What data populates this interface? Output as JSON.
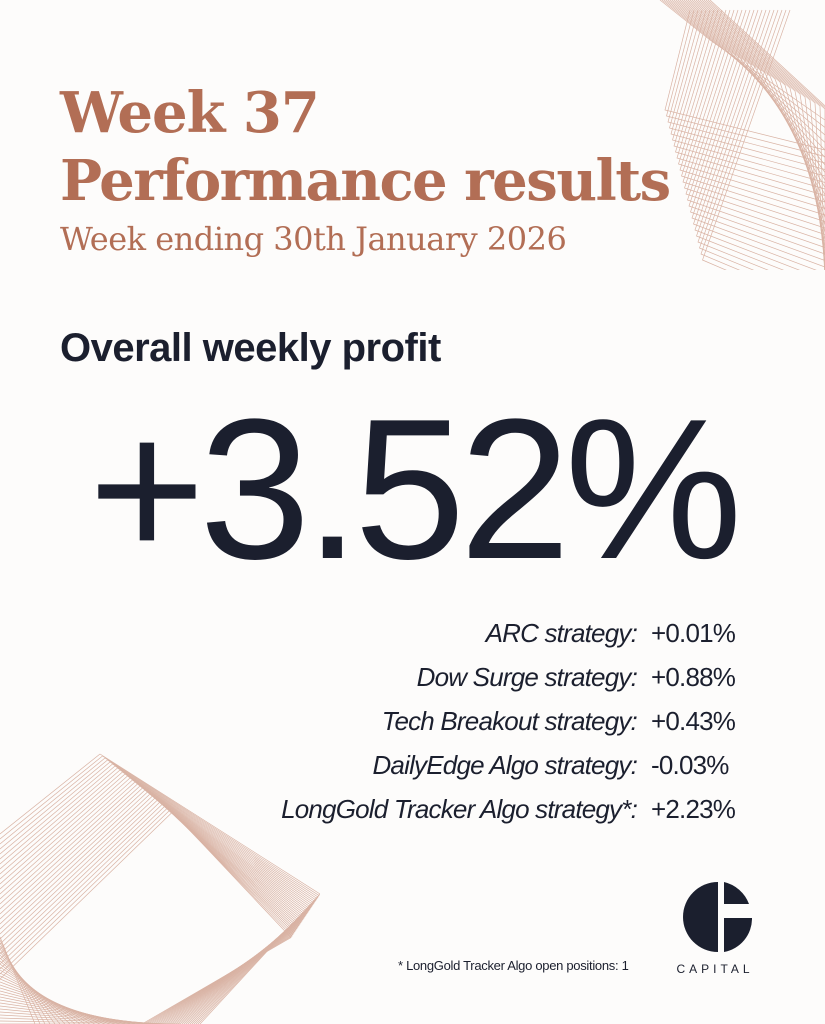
{
  "header": {
    "title_line1": "Week 37",
    "title_line2": "Performance results",
    "subtitle": "Week ending 30th January 2026"
  },
  "summary": {
    "label": "Overall weekly profit",
    "value": "+3.52%"
  },
  "strategies": [
    {
      "name": "ARC strategy:",
      "value": "+0.01%"
    },
    {
      "name": "Dow Surge strategy:",
      "value": "+0.88%"
    },
    {
      "name": "Tech Breakout strategy:",
      "value": "+0.43%"
    },
    {
      "name": "DailyEdge Algo strategy:",
      "value": "-0.03%"
    },
    {
      "name": "LongGold Tracker Algo strategy*:",
      "value": "+2.23%"
    }
  ],
  "footnote": "* LongGold Tracker Algo open positions: 1",
  "logo": {
    "text": "CAPITAL",
    "icon": "g-logo-icon"
  },
  "colors": {
    "accent": "#b26e55",
    "text": "#1b1f2e",
    "background": "#fdfcfb",
    "line_art": "#d9b3a4"
  }
}
